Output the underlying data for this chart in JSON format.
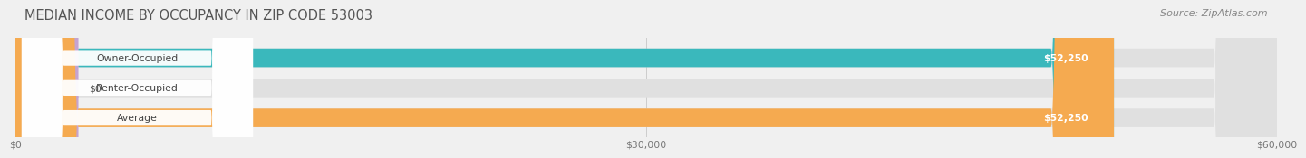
{
  "title": "MEDIAN INCOME BY OCCUPANCY IN ZIP CODE 53003",
  "source": "Source: ZipAtlas.com",
  "categories": [
    "Owner-Occupied",
    "Renter-Occupied",
    "Average"
  ],
  "values": [
    52250,
    0,
    52250
  ],
  "bar_colors": [
    "#3ab8bc",
    "#c5a3d0",
    "#f5aa50"
  ],
  "bar_labels": [
    "$52,250",
    "$0",
    "$52,250"
  ],
  "xlim": [
    0,
    60000
  ],
  "xticks": [
    0,
    30000,
    60000
  ],
  "xticklabels": [
    "$0",
    "$30,000",
    "$60,000"
  ],
  "background_color": "#f0f0f0",
  "bar_bg_color": "#e0e0e0",
  "title_fontsize": 10.5,
  "source_fontsize": 8,
  "bar_height": 0.62
}
